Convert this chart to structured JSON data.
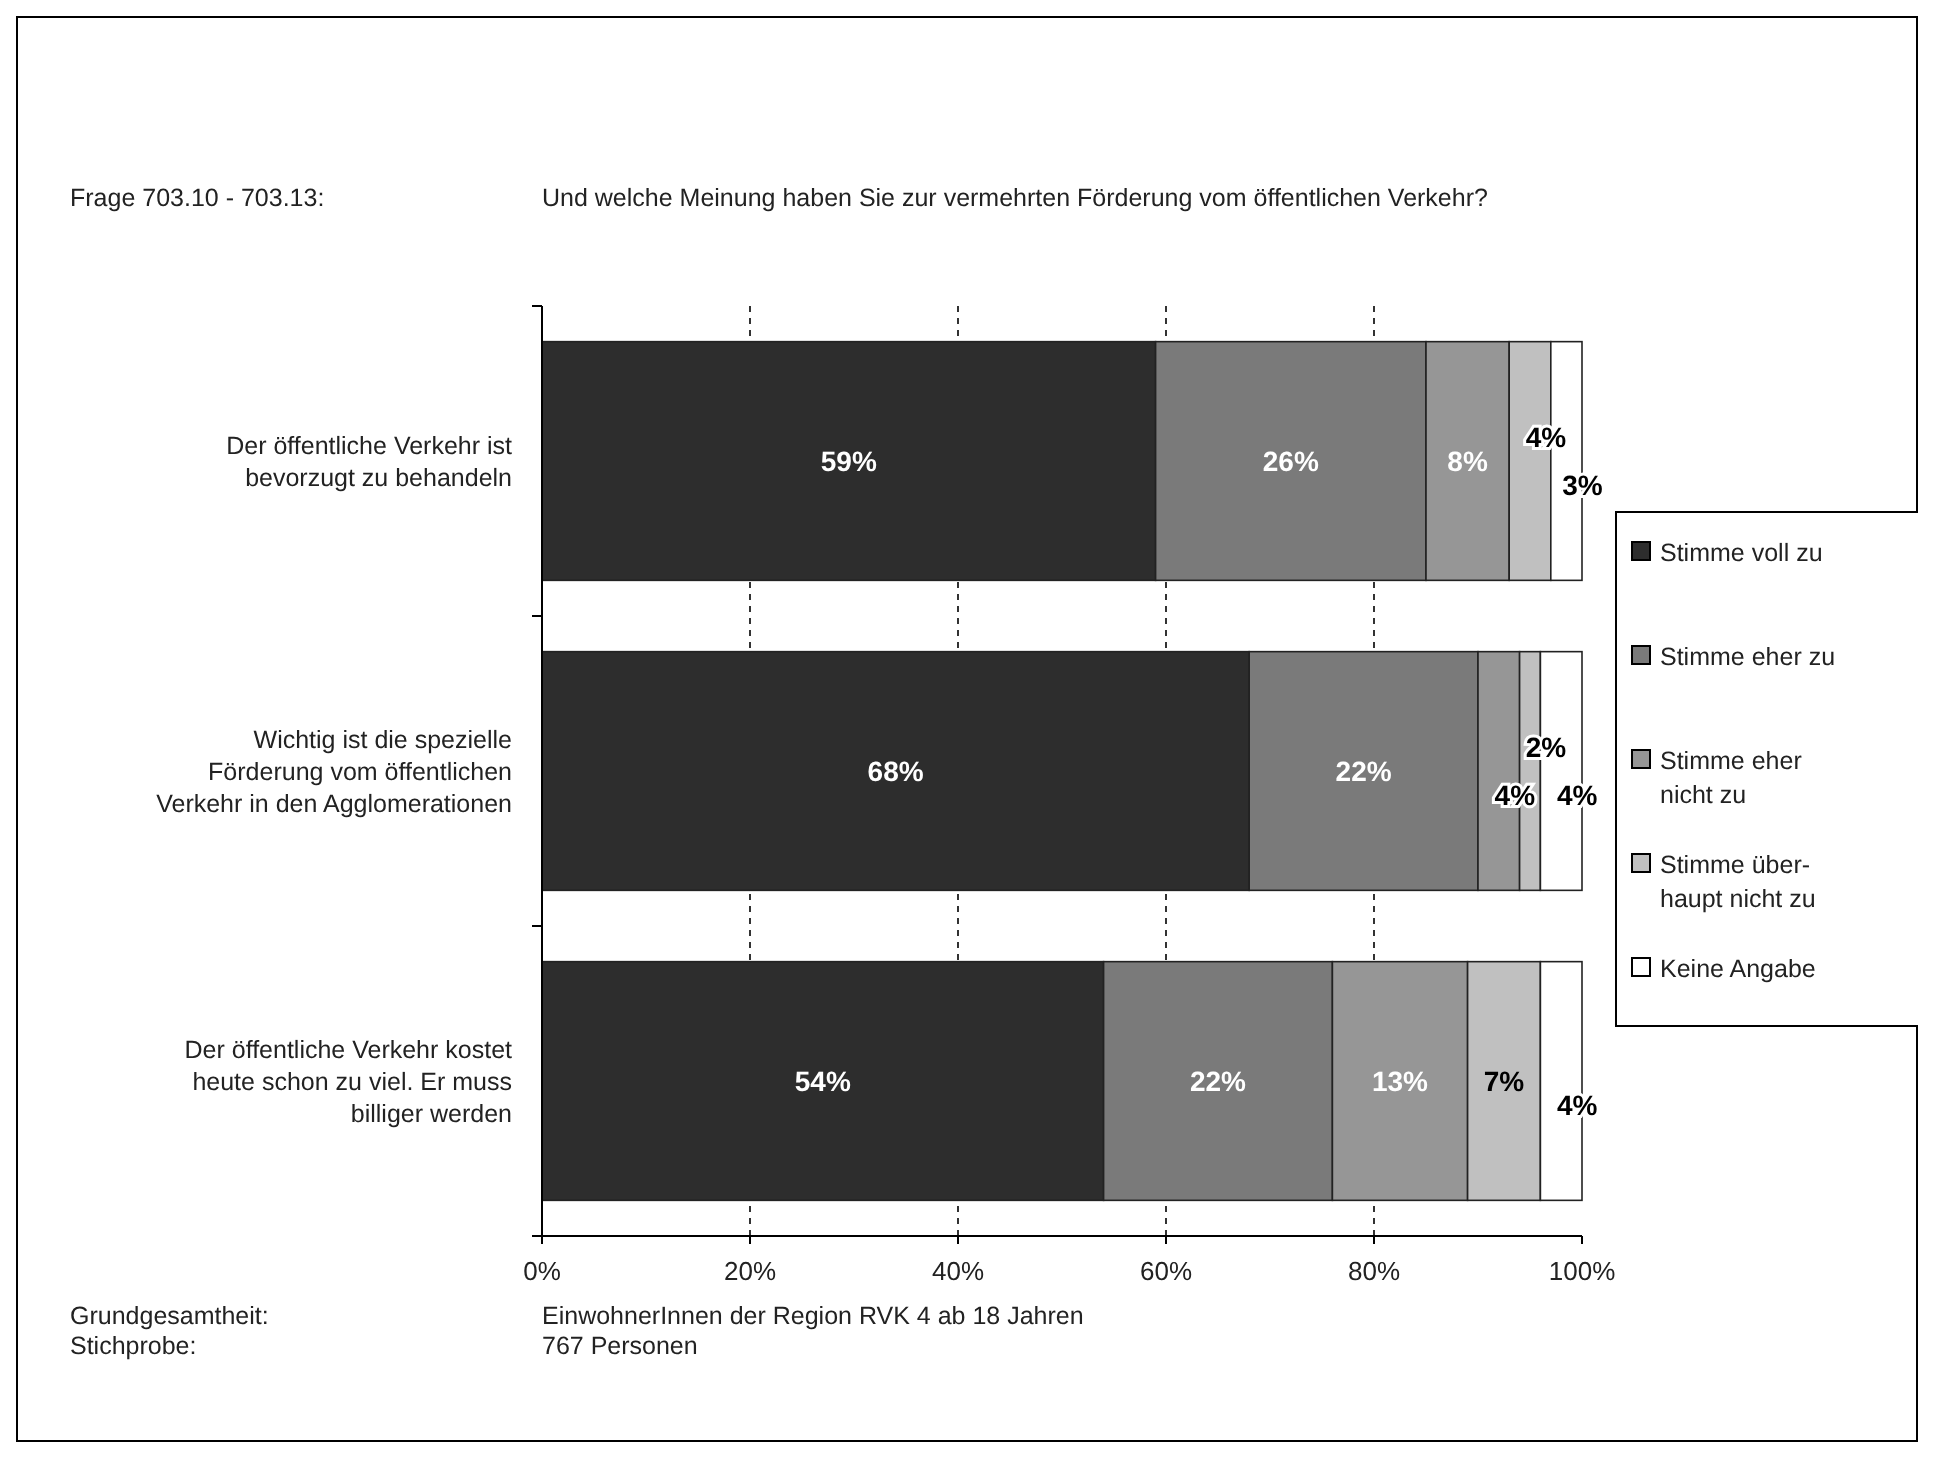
{
  "chart_data": {
    "type": "bar",
    "orientation": "horizontal",
    "stacked": true,
    "title": "Und welche Meinung haben Sie zur vermehrten Förderung vom öffentlichen Verkehr?",
    "annotations": [
      "Frage 703.10 - 703.13:",
      "Grundgesamtheit:",
      "EinwohnerInnen der Region RVK 4 ab 18 Jahren",
      "Stichprobe:",
      "767 Personen"
    ],
    "categories": [
      "Der öffentliche Verkehr ist\nbevorzugt zu behandeln",
      "Wichtig ist die spezielle\nFörderung vom öffentlichen\nVerkehr in den Agglomerationen",
      "Der öffentliche Verkehr kostet\nheute schon zu viel. Er muss\nbilliger werden"
    ],
    "series": [
      {
        "name": "Stimme voll zu",
        "color": "#2d2d2d",
        "values": [
          59,
          68,
          54
        ],
        "value_labels": [
          "59%",
          "68%",
          "54%"
        ]
      },
      {
        "name": "Stimme eher zu",
        "color": "#7a7a7a",
        "values": [
          26,
          22,
          22
        ],
        "value_labels": [
          "26%",
          "22%",
          "22%"
        ]
      },
      {
        "name": "Stimme eher\nnicht zu",
        "color": "#969696",
        "values": [
          8,
          4,
          13
        ],
        "value_labels": [
          "8%",
          "4%",
          "13%"
        ]
      },
      {
        "name": "Stimme über-\nhaupt nicht zu",
        "color": "#c0c0c0",
        "values": [
          4,
          2,
          7
        ],
        "value_labels": [
          "4%",
          "2%",
          "7%"
        ]
      },
      {
        "name": "Keine Angabe",
        "color": "#ffffff",
        "values": [
          3,
          4,
          4
        ],
        "value_labels": [
          "3%",
          "4%",
          "4%"
        ]
      }
    ],
    "xlim": [
      0,
      100
    ],
    "xticks": [
      {
        "value": 0,
        "label": "0%"
      },
      {
        "value": 20,
        "label": "20%"
      },
      {
        "value": 40,
        "label": "40%"
      },
      {
        "value": 60,
        "label": "60%"
      },
      {
        "value": 80,
        "label": "80%"
      },
      {
        "value": 100,
        "label": "100%"
      }
    ],
    "grid": "x",
    "legend": "right"
  }
}
